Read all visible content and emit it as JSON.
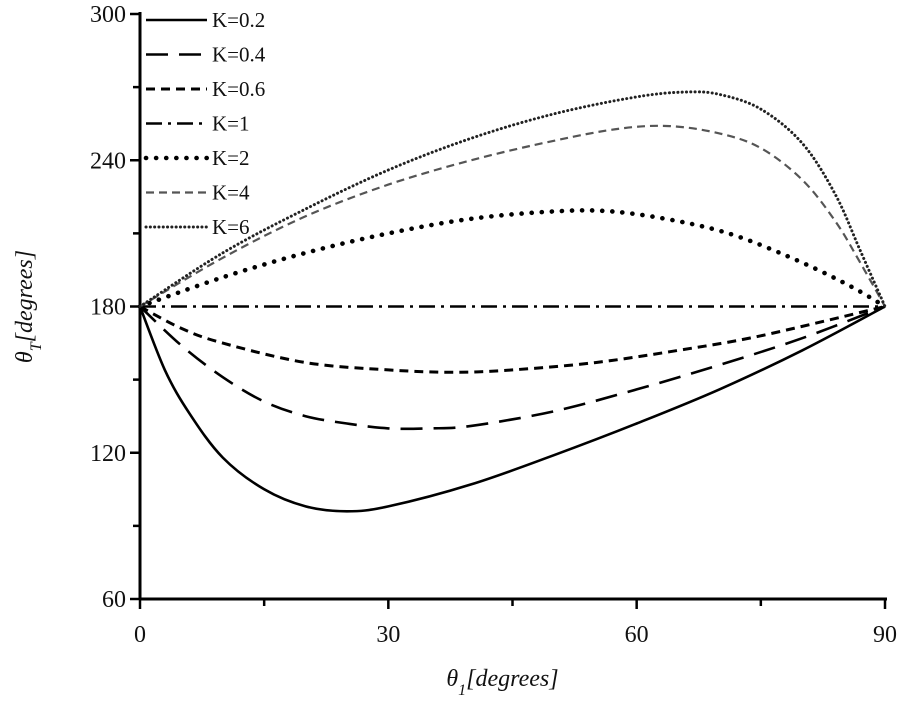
{
  "chart_data": {
    "type": "line",
    "title": "",
    "xlabel": {
      "main": "θ",
      "sub": "1",
      "rest": "[degrees]"
    },
    "ylabel": {
      "main": "θ",
      "sub": "T",
      "rest": "[degrees]"
    },
    "xlim": [
      0,
      90
    ],
    "ylim": [
      60,
      300
    ],
    "xticks": [
      0,
      30,
      60,
      90
    ],
    "yticks": [
      60,
      120,
      180,
      240,
      300
    ],
    "x_minor_step": 15,
    "y_minor_step": 30,
    "grid": false,
    "legend_position": "top-left",
    "series": [
      {
        "name": "K=0.2",
        "style": "solid",
        "color": "#000000",
        "x": [
          0,
          3,
          6,
          10,
          15,
          20,
          25,
          30,
          40,
          50,
          60,
          70,
          80,
          90
        ],
        "y": [
          180,
          154,
          136,
          118,
          105,
          98,
          96,
          98,
          107,
          119,
          132,
          146,
          162,
          180
        ]
      },
      {
        "name": "K=0.4",
        "style": "longdash",
        "color": "#000000",
        "x": [
          0,
          5,
          10,
          15,
          20,
          25,
          30,
          35,
          40,
          50,
          60,
          70,
          80,
          90
        ],
        "y": [
          180,
          164,
          151,
          141,
          135,
          132,
          130,
          130,
          131,
          137,
          146,
          156,
          167,
          180
        ]
      },
      {
        "name": "K=0.6",
        "style": "dash",
        "color": "#000000",
        "x": [
          0,
          5,
          10,
          20,
          30,
          38,
          45,
          55,
          65,
          75,
          90
        ],
        "y": [
          180,
          171,
          165,
          157,
          154,
          153,
          154,
          157,
          162,
          168,
          180
        ]
      },
      {
        "name": "K=1",
        "style": "dashdot",
        "color": "#000000",
        "x": [
          0,
          90
        ],
        "y": [
          180,
          180
        ]
      },
      {
        "name": "K=2",
        "style": "dot",
        "color": "#000000",
        "x": [
          0,
          10,
          20,
          30,
          40,
          50,
          57,
          65,
          72,
          80,
          86,
          90
        ],
        "y": [
          180,
          192,
          202,
          210,
          216,
          219,
          219,
          215,
          209,
          198,
          188,
          180
        ]
      },
      {
        "name": "K=4",
        "style": "shortdash",
        "color": "#555555",
        "x": [
          0,
          10,
          20,
          30,
          40,
          50,
          58,
          64,
          70,
          75,
          80,
          84,
          87,
          90
        ],
        "y": [
          180,
          200,
          217,
          230,
          240,
          248,
          253,
          254,
          251,
          245,
          232,
          215,
          198,
          180
        ]
      },
      {
        "name": "K=6",
        "style": "finedot",
        "color": "#222222",
        "x": [
          0,
          10,
          20,
          30,
          40,
          50,
          60,
          66,
          70,
          75,
          80,
          84,
          87,
          90
        ],
        "y": [
          180,
          202,
          220,
          236,
          249,
          259,
          266,
          268,
          267,
          261,
          247,
          226,
          203,
          180
        ]
      }
    ]
  }
}
